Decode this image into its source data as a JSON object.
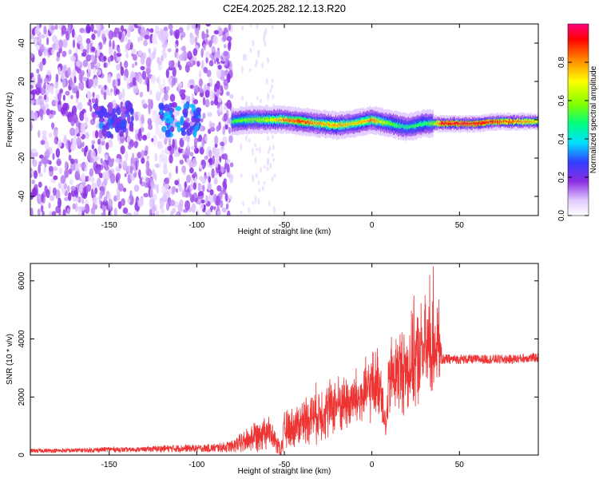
{
  "figure_title": "C2E4.2025.282.12.13.R20",
  "chart_data": [
    {
      "type": "heatmap",
      "name": "spectrogram",
      "title": "C2E4.2025.282.12.13.R20",
      "xlabel": "Height of straight line (km)",
      "ylabel": "Frequency (Hz)",
      "xlim": [
        -195,
        95
      ],
      "ylim": [
        -50,
        50
      ],
      "xticks": [
        -150,
        -100,
        -50,
        0,
        50
      ],
      "xtick_labels": [
        "-150",
        "-100",
        "-50",
        "0",
        "50"
      ],
      "yticks": [
        -40,
        -20,
        0,
        20,
        40
      ],
      "ytick_labels": [
        "-40",
        "-20",
        "0",
        "20",
        "40"
      ],
      "colorbar": {
        "label": "Normalized spectral amplitude",
        "range": [
          0.0,
          1.0
        ],
        "ticks": [
          0.0,
          0.2,
          0.4,
          0.6,
          0.8
        ],
        "tick_labels": [
          "0.0",
          "0.2",
          "0.4",
          "0.6",
          "0.8"
        ],
        "colors": [
          "#ffffff",
          "#e0c8ff",
          "#8a2be2",
          "#3040ff",
          "#00e0ff",
          "#00ff80",
          "#80ff00",
          "#ffff00",
          "#ff8000",
          "#ff0000",
          "#ff0080"
        ]
      },
      "band_centerline": {
        "description_free": true,
        "x": [
          -80,
          -70,
          -60,
          -50,
          -40,
          -30,
          -20,
          -10,
          0,
          5,
          10,
          15,
          20,
          25,
          30,
          35,
          40,
          50,
          60,
          70,
          80,
          90,
          95
        ],
        "y": [
          -1,
          0,
          0,
          0,
          -1,
          -2,
          -3,
          -2,
          0,
          -1,
          -2,
          -3,
          -4,
          -3,
          -2,
          -2,
          -2,
          -2,
          -2,
          -1,
          -1,
          -1,
          -1
        ]
      },
      "band_peak_amplitude": [
        0.55,
        0.6,
        0.65,
        0.85,
        0.9,
        0.8,
        0.8,
        0.75,
        0.85,
        0.7,
        0.6,
        0.5,
        0.5,
        0.55,
        0.5,
        0.6,
        0.95,
        0.95,
        0.95,
        0.9,
        0.85,
        0.8,
        0.7
      ],
      "noise_region_xlim": [
        -195,
        -80
      ],
      "noise_blob_centers": [
        {
          "x": -147,
          "y": 0,
          "amplitude": 0.3
        },
        {
          "x": -110,
          "y": 0,
          "amplitude": 0.35
        }
      ]
    },
    {
      "type": "line",
      "name": "snr",
      "xlabel": "Height of straight line (km)",
      "ylabel": "SNR (10 * v/v)",
      "xlim": [
        -195,
        95
      ],
      "ylim": [
        0,
        6600
      ],
      "xticks": [
        -150,
        -100,
        -50,
        0,
        50
      ],
      "xtick_labels": [
        "-150",
        "-100",
        "-50",
        "0",
        "50"
      ],
      "yticks": [
        0,
        2000,
        4000,
        6000
      ],
      "ytick_labels": [
        "0",
        "2000",
        "4000",
        "6000"
      ],
      "color": "#ee3333",
      "series": [
        {
          "name": "SNR",
          "x": [
            -195,
            -180,
            -160,
            -150,
            -140,
            -130,
            -120,
            -110,
            -100,
            -90,
            -80,
            -75,
            -70,
            -65,
            -60,
            -56,
            -52,
            -50,
            -45,
            -40,
            -35,
            -30,
            -25,
            -20,
            -15,
            -10,
            -5,
            0,
            5,
            8,
            10,
            15,
            20,
            25,
            30,
            35,
            38,
            40,
            50,
            60,
            70,
            80,
            90,
            95
          ],
          "values": [
            150,
            150,
            170,
            200,
            180,
            200,
            220,
            230,
            230,
            240,
            300,
            400,
            550,
            750,
            900,
            550,
            150,
            850,
            950,
            1150,
            1350,
            1450,
            1600,
            1750,
            1800,
            1900,
            2000,
            2400,
            2500,
            900,
            2600,
            2900,
            3000,
            3300,
            3600,
            3700,
            3900,
            3300,
            3300,
            3300,
            3300,
            3300,
            3350,
            3350
          ],
          "spread": [
            70,
            70,
            80,
            90,
            80,
            80,
            120,
            130,
            120,
            150,
            200,
            350,
            500,
            600,
            650,
            400,
            200,
            650,
            700,
            800,
            900,
            1000,
            1000,
            1000,
            1000,
            1050,
            1100,
            1200,
            1200,
            500,
            1400,
            1500,
            1600,
            1700,
            1800,
            1700,
            1500,
            180,
            160,
            160,
            160,
            160,
            160,
            160
          ],
          "peaks": [
            {
              "x": 35,
              "y": 6500
            },
            {
              "x": 33,
              "y": 6200
            },
            {
              "x": 24,
              "y": 5500
            }
          ]
        }
      ]
    }
  ]
}
